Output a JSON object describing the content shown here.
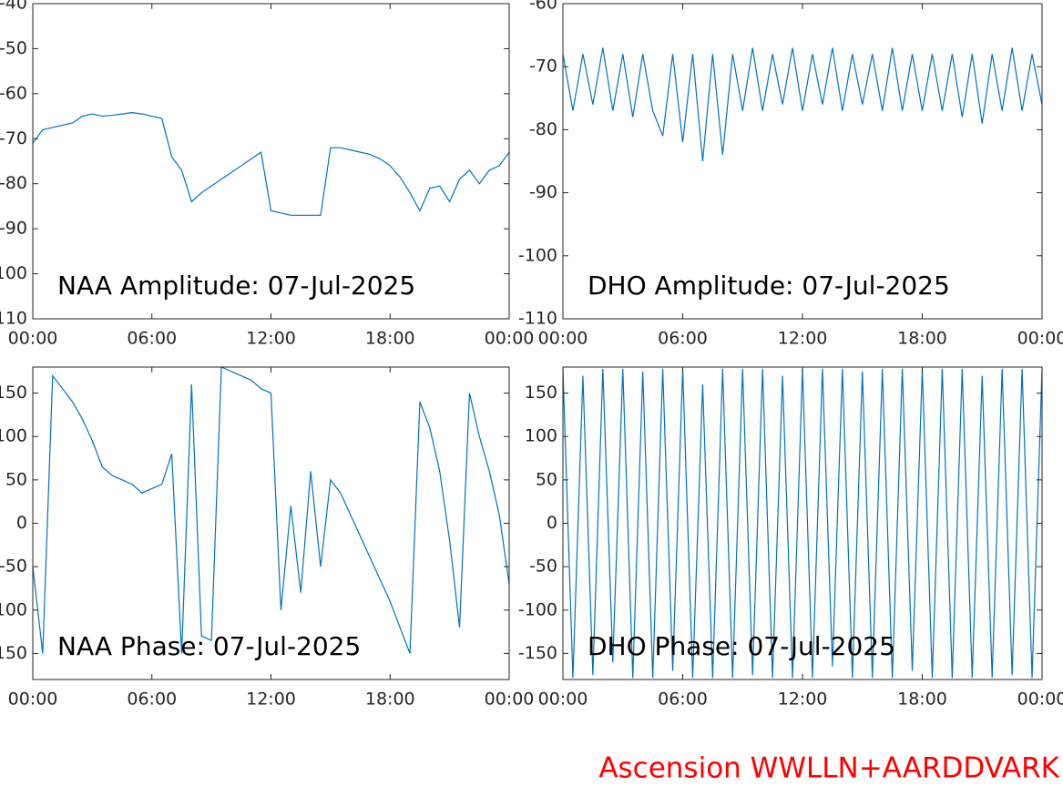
{
  "caption": "Ascension WWLLN+AARDDVARK",
  "chart_data": [
    {
      "type": "line",
      "title": "NAA Amplitude: 07-Jul-2025",
      "color": "#0072bd",
      "x": [
        0,
        0.5,
        1,
        1.5,
        2,
        2.5,
        3,
        3.5,
        4,
        4.5,
        5,
        5.5,
        6,
        6.5,
        7,
        7.5,
        8,
        8.5,
        9,
        9.5,
        10,
        10.5,
        11,
        11.5,
        12,
        12.5,
        13,
        13.5,
        14,
        14.5,
        15,
        15.5,
        16,
        16.5,
        17,
        17.5,
        18,
        18.5,
        19,
        19.5,
        20,
        20.5,
        21,
        21.5,
        22,
        22.5,
        23,
        23.5,
        24
      ],
      "values": [
        -71,
        -68,
        -67.5,
        -67,
        -66.5,
        -65,
        -64.5,
        -65,
        -64.8,
        -64.5,
        -64.2,
        -64.5,
        -65,
        -65.5,
        -74,
        -77,
        -84,
        -82,
        -80.5,
        -79,
        -77.5,
        -76,
        -74.5,
        -73,
        -86,
        -86.5,
        -87,
        -87,
        -87,
        -87,
        -72,
        -72,
        -72.5,
        -73,
        -73.5,
        -74.5,
        -76,
        -78.5,
        -82,
        -86,
        -81,
        -80.5,
        -84,
        -79,
        -77,
        -80,
        -77,
        -76,
        -73
      ],
      "xlim": [
        0,
        24
      ],
      "xticks": [
        {
          "value": 0,
          "label": "00:00"
        },
        {
          "value": 6,
          "label": "06:00"
        },
        {
          "value": 12,
          "label": "12:00"
        },
        {
          "value": 18,
          "label": "18:00"
        },
        {
          "value": 24,
          "label": "00:00"
        }
      ],
      "ylim": [
        -110,
        -40
      ],
      "yticks": [
        -40,
        -50,
        -60,
        -70,
        -80,
        -90,
        -100,
        -110
      ]
    },
    {
      "type": "line",
      "title": "DHO Amplitude: 07-Jul-2025",
      "color": "#0072bd",
      "x": [
        0,
        0.5,
        1,
        1.5,
        2,
        2.5,
        3,
        3.5,
        4,
        4.5,
        5,
        5.5,
        6,
        6.5,
        7,
        7.5,
        8,
        8.5,
        9,
        9.5,
        10,
        10.5,
        11,
        11.5,
        12,
        12.5,
        13,
        13.5,
        14,
        14.5,
        15,
        15.5,
        16,
        16.5,
        17,
        17.5,
        18,
        18.5,
        19,
        19.5,
        20,
        20.5,
        21,
        21.5,
        22,
        22.5,
        23,
        23.5,
        24
      ],
      "values": [
        -68,
        -77,
        -68,
        -76,
        -67,
        -77,
        -68,
        -78,
        -68,
        -77,
        -81,
        -68,
        -82,
        -68,
        -85,
        -68,
        -84,
        -68,
        -77,
        -67,
        -77,
        -68,
        -76,
        -67,
        -77,
        -68,
        -76,
        -67,
        -77,
        -68,
        -76,
        -68,
        -77,
        -67,
        -77,
        -68,
        -77,
        -68,
        -77,
        -68,
        -78,
        -68,
        -79,
        -68,
        -77,
        -67,
        -77,
        -68,
        -76
      ],
      "xlim": [
        0,
        24
      ],
      "xticks": [
        {
          "value": 0,
          "label": "00:00"
        },
        {
          "value": 6,
          "label": "06:00"
        },
        {
          "value": 12,
          "label": "12:00"
        },
        {
          "value": 18,
          "label": "18:00"
        },
        {
          "value": 24,
          "label": "00:00"
        }
      ],
      "ylim": [
        -110,
        -60
      ],
      "yticks": [
        -60,
        -70,
        -80,
        -90,
        -100,
        -110
      ]
    },
    {
      "type": "line",
      "title": "NAA Phase: 07-Jul-2025",
      "color": "#0072bd",
      "x": [
        0,
        0.5,
        1,
        1.5,
        2,
        2.5,
        3,
        3.5,
        4,
        4.5,
        5,
        5.5,
        6,
        6.5,
        7,
        7.5,
        8,
        8.5,
        9,
        9.5,
        10,
        10.5,
        11,
        11.5,
        12,
        12.5,
        13,
        13.5,
        14,
        14.5,
        15,
        15.5,
        16,
        16.5,
        17,
        17.5,
        18,
        18.5,
        19,
        19.5,
        20,
        20.5,
        21,
        21.5,
        22,
        22.5,
        23,
        23.5,
        24
      ],
      "values": [
        -50,
        -150,
        170,
        155,
        140,
        120,
        95,
        65,
        55,
        50,
        45,
        35,
        40,
        45,
        80,
        -150,
        160,
        -130,
        -135,
        180,
        175,
        170,
        165,
        155,
        150,
        -100,
        20,
        -80,
        60,
        -50,
        50,
        35,
        10,
        -15,
        -40,
        -65,
        -90,
        -120,
        -150,
        140,
        110,
        60,
        -20,
        -120,
        150,
        100,
        60,
        10,
        -70
      ],
      "xlim": [
        0,
        24
      ],
      "xticks": [
        {
          "value": 0,
          "label": "00:00"
        },
        {
          "value": 6,
          "label": "06:00"
        },
        {
          "value": 12,
          "label": "12:00"
        },
        {
          "value": 18,
          "label": "18:00"
        },
        {
          "value": 24,
          "label": "00:00"
        }
      ],
      "ylim": [
        -180,
        180
      ],
      "yticks": [
        150,
        100,
        50,
        0,
        -50,
        -100,
        -150
      ]
    },
    {
      "type": "line",
      "title": "DHO Phase: 07-Jul-2025",
      "color": "#0072bd",
      "x": [
        0,
        0.5,
        1,
        1.5,
        2,
        2.5,
        3,
        3.5,
        4,
        4.5,
        5,
        5.5,
        6,
        6.5,
        7,
        7.5,
        8,
        8.5,
        9,
        9.5,
        10,
        10.5,
        11,
        11.5,
        12,
        12.5,
        13,
        13.5,
        14,
        14.5,
        15,
        15.5,
        16,
        16.5,
        17,
        17.5,
        18,
        18.5,
        19,
        19.5,
        20,
        20.5,
        21,
        21.5,
        22,
        22.5,
        23,
        23.5,
        24
      ],
      "values": [
        178,
        -178,
        170,
        -175,
        178,
        -160,
        178,
        -178,
        175,
        -178,
        178,
        -170,
        178,
        -178,
        160,
        -178,
        178,
        -178,
        178,
        -175,
        178,
        -178,
        170,
        -178,
        178,
        -178,
        178,
        -165,
        178,
        -178,
        175,
        -178,
        178,
        -178,
        178,
        -170,
        178,
        -178,
        178,
        -178,
        178,
        -178,
        170,
        -178,
        178,
        -175,
        178,
        -178,
        178
      ],
      "xlim": [
        0,
        24
      ],
      "xticks": [
        {
          "value": 0,
          "label": "00:00"
        },
        {
          "value": 6,
          "label": "06:00"
        },
        {
          "value": 12,
          "label": "12:00"
        },
        {
          "value": 18,
          "label": "18:00"
        },
        {
          "value": 24,
          "label": "00:00"
        }
      ],
      "ylim": [
        -180,
        180
      ],
      "yticks": [
        150,
        100,
        50,
        0,
        -50,
        -100,
        -150
      ]
    }
  ]
}
